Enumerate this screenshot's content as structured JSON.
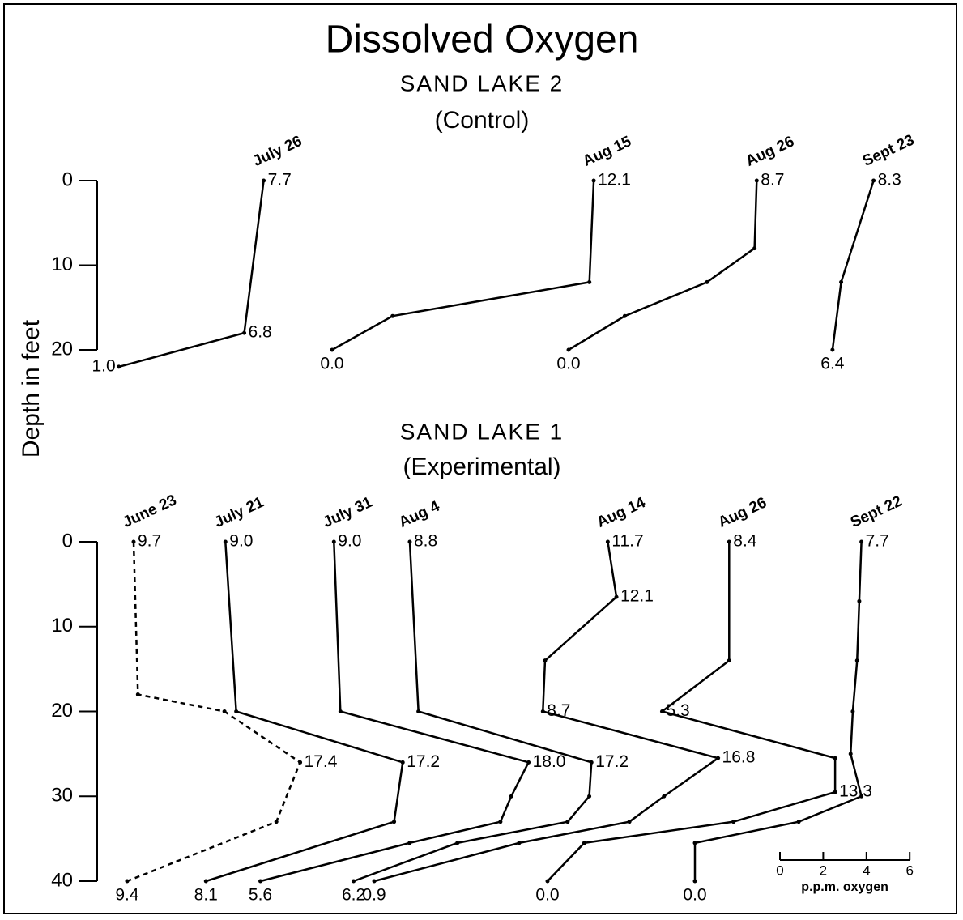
{
  "title": "Dissolved Oxygen",
  "y_label": "Depth in feet",
  "scale_bar": {
    "ticks": [
      0,
      2,
      4,
      6
    ],
    "label": "p.p.m. oxygen"
  },
  "chart_data": [
    {
      "type": "line",
      "title": "SAND LAKE 2",
      "subtitle": "(Control)",
      "color": "#000000",
      "ylim": [
        0,
        20
      ],
      "yticks": [
        0,
        10,
        20
      ],
      "series": [
        {
          "name": "July 26",
          "depths": [
            0,
            18,
            22
          ],
          "values": [
            7.7,
            6.8,
            1.0
          ],
          "value_labels": [
            "7.7",
            "6.8",
            "1.0"
          ]
        },
        {
          "name": "Aug 15",
          "depths": [
            0,
            12,
            16,
            20
          ],
          "values": [
            12.1,
            11.9,
            2.8,
            0
          ],
          "value_labels": [
            "12.1",
            null,
            null,
            "0.0"
          ]
        },
        {
          "name": "Aug 26",
          "depths": [
            0,
            8,
            12,
            16,
            20
          ],
          "values": [
            8.7,
            8.6,
            6.4,
            2.6,
            0
          ],
          "value_labels": [
            "8.7",
            null,
            null,
            null,
            "0.0"
          ]
        },
        {
          "name": "Sept 23",
          "depths": [
            0,
            12,
            20
          ],
          "values": [
            8.3,
            6.8,
            6.4
          ],
          "value_labels": [
            "8.3",
            null,
            "6.4"
          ]
        }
      ]
    },
    {
      "type": "line",
      "title": "SAND LAKE 1",
      "subtitle": "(Experimental)",
      "color": "#000000",
      "ylim": [
        0,
        40
      ],
      "yticks": [
        0,
        10,
        20,
        30,
        40
      ],
      "series": [
        {
          "name": "June 23",
          "dashed": true,
          "depths": [
            0,
            18,
            20,
            26,
            33,
            40
          ],
          "values": [
            9.7,
            9.9,
            13.9,
            17.4,
            16.3,
            9.4
          ],
          "value_labels": [
            "9.7",
            null,
            null,
            "17.4",
            null,
            "9.4"
          ]
        },
        {
          "name": "July 21",
          "depths": [
            0,
            20,
            26,
            33,
            40
          ],
          "values": [
            9.0,
            9.5,
            17.2,
            16.8,
            8.1
          ],
          "value_labels": [
            "9.0",
            null,
            "17.2",
            null,
            "8.1"
          ]
        },
        {
          "name": "July 31",
          "depths": [
            0,
            20,
            26,
            30,
            33,
            35.5,
            40
          ],
          "values": [
            9.0,
            9.3,
            18.0,
            17.2,
            16.7,
            12.5,
            5.6
          ],
          "value_labels": [
            "9.0",
            null,
            "18.0",
            null,
            null,
            null,
            "5.6"
          ]
        },
        {
          "name": "Aug 4",
          "depths": [
            0,
            20,
            26,
            30,
            33,
            35.5,
            40
          ],
          "values": [
            8.8,
            9.2,
            17.2,
            17.1,
            16.1,
            11.0,
            6.2
          ],
          "value_labels": [
            "8.8",
            null,
            "17.2",
            null,
            null,
            null,
            "6.2"
          ]
        },
        {
          "name": "Aug 14",
          "depths": [
            0,
            6.5,
            14,
            20,
            25.5,
            30,
            33,
            35.5,
            40
          ],
          "values": [
            11.7,
            12.1,
            8.8,
            8.7,
            16.8,
            14.3,
            12.7,
            7.6,
            0.9
          ],
          "value_labels": [
            "11.7",
            "12.1",
            null,
            "8.7",
            "16.8",
            null,
            null,
            null,
            "0.9"
          ]
        },
        {
          "name": "Aug 26",
          "depths": [
            0,
            14,
            20,
            25.5,
            29.5,
            33,
            35.5,
            40
          ],
          "values": [
            8.4,
            8.4,
            5.3,
            13.3,
            13.3,
            8.6,
            1.7,
            0.0
          ],
          "value_labels": [
            "8.4",
            null,
            "5.3",
            null,
            "13.3",
            null,
            null,
            "0.0"
          ]
        },
        {
          "name": "Sept 22",
          "depths": [
            0,
            7,
            14,
            20,
            25,
            30,
            33,
            35.5,
            40
          ],
          "values": [
            7.7,
            7.6,
            7.5,
            7.3,
            7.2,
            7.7,
            4.8,
            0.0,
            0.0
          ],
          "value_labels": [
            "7.7",
            null,
            null,
            null,
            null,
            null,
            null,
            null,
            "0.0"
          ]
        }
      ]
    }
  ]
}
